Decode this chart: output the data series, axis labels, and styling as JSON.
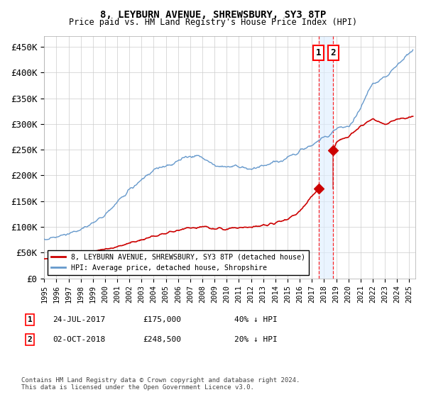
{
  "title": "8, LEYBURN AVENUE, SHREWSBURY, SY3 8TP",
  "subtitle": "Price paid vs. HM Land Registry's House Price Index (HPI)",
  "ylabel_ticks": [
    "£0",
    "£50K",
    "£100K",
    "£150K",
    "£200K",
    "£250K",
    "£300K",
    "£350K",
    "£400K",
    "£450K"
  ],
  "ytick_values": [
    0,
    50000,
    100000,
    150000,
    200000,
    250000,
    300000,
    350000,
    400000,
    450000
  ],
  "ylim": [
    0,
    470000
  ],
  "xlim_start": 1995.0,
  "xlim_end": 2025.5,
  "hpi_color": "#6699cc",
  "price_color": "#cc0000",
  "transaction1_date": 2017.56,
  "transaction1_price": 175000,
  "transaction2_date": 2018.75,
  "transaction2_price": 248500,
  "legend1_label": "8, LEYBURN AVENUE, SHREWSBURY, SY3 8TP (detached house)",
  "legend2_label": "HPI: Average price, detached house, Shropshire",
  "annotation1_label": "1",
  "annotation2_label": "2",
  "note1_num": "1",
  "note1_date": "24-JUL-2017",
  "note1_price": "£175,000",
  "note1_hpi": "40% ↓ HPI",
  "note2_num": "2",
  "note2_date": "02-OCT-2018",
  "note2_price": "£248,500",
  "note2_hpi": "20% ↓ HPI",
  "footer": "Contains HM Land Registry data © Crown copyright and database right 2024.\nThis data is licensed under the Open Government Licence v3.0.",
  "background_color": "#ffffff",
  "grid_color": "#cccccc",
  "hpi_knots_t": [
    1995,
    1996,
    1997,
    1998,
    1999,
    2000,
    2001,
    2002,
    2003,
    2004,
    2005,
    2006,
    2007,
    2008,
    2009,
    2010,
    2011,
    2012,
    2013,
    2014,
    2015,
    2016,
    2017,
    2018,
    2019,
    2020,
    2021,
    2022,
    2023,
    2024,
    2025.3
  ],
  "hpi_knots_v": [
    76000,
    80000,
    86000,
    95000,
    108000,
    125000,
    148000,
    172000,
    192000,
    210000,
    218000,
    228000,
    240000,
    235000,
    218000,
    218000,
    215000,
    213000,
    218000,
    225000,
    235000,
    248000,
    260000,
    272000,
    290000,
    295000,
    330000,
    380000,
    390000,
    415000,
    445000
  ],
  "red_knots_t": [
    1995,
    1996,
    1997,
    1998,
    1999,
    2000,
    2001,
    2002,
    2003,
    2004,
    2005,
    2006,
    2007,
    2008,
    2009,
    2010,
    2011,
    2012,
    2013,
    2014,
    2015,
    2016,
    2017.56,
    2018.75,
    2019,
    2020,
    2021,
    2022,
    2023,
    2024,
    2025.3
  ],
  "red_knots_v": [
    38000,
    40000,
    43000,
    47000,
    52000,
    57000,
    62000,
    68000,
    75000,
    82000,
    88000,
    93000,
    98000,
    100000,
    97000,
    96000,
    98000,
    100000,
    104000,
    108000,
    115000,
    130000,
    175000,
    248500,
    265000,
    275000,
    295000,
    310000,
    300000,
    308000,
    315000
  ],
  "hpi_noise_std": 4500,
  "red_noise_std": 2000,
  "hpi_noise_seed": 42,
  "red_noise_seed": 99,
  "shade_color": "#ddeeff",
  "shade_alpha": 0.6
}
